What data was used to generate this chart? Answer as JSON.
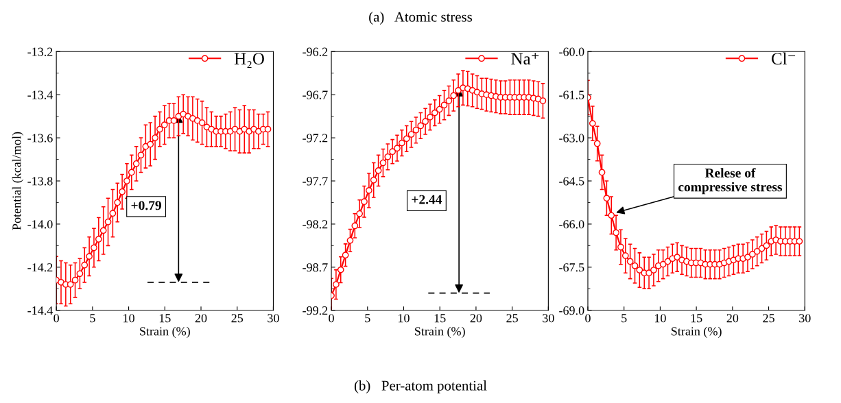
{
  "chart_data": [
    {
      "type": "line",
      "xlabel": "Strain (%)",
      "ylabel": "Potential (kcal/mol)",
      "xlim": [
        0,
        30
      ],
      "xticks": [
        0,
        5,
        10,
        15,
        20,
        25,
        30
      ],
      "ylim": [
        -14.4,
        -13.2
      ],
      "yticks": [
        -14.4,
        -14.2,
        {
          "value": -14,
          "label": "-14.0"
        },
        -13.8,
        -13.6,
        -13.4,
        -13.2
      ],
      "legend": "top right",
      "marker": "circle",
      "grid": false,
      "x": [
        0,
        0.65,
        1.3,
        1.95,
        2.6,
        3.25,
        3.9,
        4.55,
        5.2,
        5.85,
        6.5,
        7.15,
        7.8,
        8.45,
        9.1,
        9.75,
        10.4,
        11.05,
        11.7,
        12.35,
        13.0,
        13.65,
        14.3,
        14.95,
        15.6,
        16.25,
        16.9,
        17.55,
        18.2,
        18.85,
        19.5,
        20.15,
        20.8,
        21.45,
        22.1,
        22.75,
        23.4,
        24.05,
        24.7,
        25.35,
        26.0,
        26.65,
        27.3,
        27.95,
        28.6,
        29.25
      ],
      "series": [
        {
          "name": "H₂O",
          "color": "#ff0000",
          "values": [
            -14.26,
            -14.27,
            -14.28,
            -14.28,
            -14.26,
            -14.23,
            -14.19,
            -14.15,
            -14.11,
            -14.07,
            -14.03,
            -13.99,
            -13.95,
            -13.9,
            -13.85,
            -13.8,
            -13.76,
            -13.72,
            -13.68,
            -13.64,
            -13.63,
            -13.6,
            -13.56,
            -13.54,
            -13.52,
            -13.52,
            -13.5,
            -13.49,
            -13.5,
            -13.51,
            -13.52,
            -13.53,
            -13.55,
            -13.56,
            -13.57,
            -13.57,
            -13.57,
            -13.57,
            -13.56,
            -13.57,
            -13.56,
            -13.57,
            -13.56,
            -13.57,
            -13.56,
            -13.56
          ],
          "errors": [
            0.11,
            0.1,
            0.1,
            0.09,
            0.08,
            0.07,
            0.08,
            0.09,
            0.09,
            0.1,
            0.11,
            0.11,
            0.11,
            0.09,
            0.08,
            0.08,
            0.08,
            0.08,
            0.08,
            0.1,
            0.1,
            0.1,
            0.08,
            0.09,
            0.08,
            0.08,
            0.09,
            0.09,
            0.09,
            0.1,
            0.1,
            0.1,
            0.09,
            0.08,
            0.07,
            0.07,
            0.08,
            0.09,
            0.1,
            0.1,
            0.11,
            0.1,
            0.09,
            0.08,
            0.07,
            0.08
          ]
        },
        {
          "type": "line",
          "color": "#000000",
          "line_style": "dashed",
          "marker": "none",
          "x": [
            12.6,
            21.2
          ],
          "values": [
            -14.27,
            -14.27
          ]
        }
      ],
      "annotations": [
        "+0.79"
      ]
    },
    {
      "type": "line",
      "xlabel": "Strain (%)",
      "xlim": [
        0,
        30
      ],
      "xticks": [
        0,
        5,
        10,
        15,
        20,
        25,
        30
      ],
      "ylim": [
        -99.2,
        -96.2
      ],
      "yticks": [
        -99.2,
        -98.7,
        -98.2,
        -97.7,
        -97.2,
        -96.7,
        -96.2
      ],
      "legend": "top right",
      "marker": "circle",
      "grid": false,
      "x": [
        0,
        0.65,
        1.3,
        1.95,
        2.6,
        3.25,
        3.9,
        4.55,
        5.2,
        5.85,
        6.5,
        7.15,
        7.8,
        8.45,
        9.1,
        9.75,
        10.4,
        11.05,
        11.7,
        12.35,
        13.0,
        13.65,
        14.3,
        14.95,
        15.6,
        16.25,
        16.9,
        17.55,
        18.2,
        18.85,
        19.5,
        20.15,
        20.8,
        21.45,
        22.1,
        22.75,
        23.4,
        24.05,
        24.7,
        25.35,
        26.0,
        26.65,
        27.3,
        27.95,
        28.6,
        29.25
      ],
      "series": [
        {
          "name": "Na⁺",
          "color": "#ff0000",
          "values": [
            -99.03,
            -98.9,
            -98.73,
            -98.56,
            -98.39,
            -98.22,
            -98.08,
            -97.94,
            -97.81,
            -97.69,
            -97.58,
            -97.49,
            -97.42,
            -97.36,
            -97.32,
            -97.26,
            -97.21,
            -97.16,
            -97.11,
            -97.06,
            -97.01,
            -96.96,
            -96.91,
            -96.87,
            -96.82,
            -96.77,
            -96.71,
            -96.65,
            -96.62,
            -96.63,
            -96.65,
            -96.67,
            -96.69,
            -96.7,
            -96.71,
            -96.72,
            -96.73,
            -96.73,
            -96.73,
            -96.73,
            -96.73,
            -96.73,
            -96.73,
            -96.74,
            -96.75,
            -96.77
          ],
          "errors": [
            0.2,
            0.17,
            0.15,
            0.13,
            0.13,
            0.14,
            0.16,
            0.18,
            0.2,
            0.2,
            0.18,
            0.16,
            0.15,
            0.14,
            0.15,
            0.15,
            0.15,
            0.15,
            0.15,
            0.15,
            0.15,
            0.15,
            0.15,
            0.16,
            0.17,
            0.17,
            0.18,
            0.19,
            0.2,
            0.2,
            0.19,
            0.19,
            0.18,
            0.19,
            0.19,
            0.19,
            0.19,
            0.19,
            0.2,
            0.2,
            0.2,
            0.2,
            0.2,
            0.2,
            0.2,
            0.2
          ]
        },
        {
          "type": "line",
          "color": "#000000",
          "line_style": "dashed",
          "marker": "none",
          "x": [
            13.4,
            21.9
          ],
          "values": [
            -99.0,
            -99.0
          ]
        }
      ],
      "annotations": [
        "+2.44",
        "(a)   Atomic stress",
        "(b)   Per-atom potential"
      ]
    },
    {
      "type": "line",
      "xlabel": "Strain (%)",
      "xlim": [
        0,
        30
      ],
      "xticks": [
        0,
        5,
        10,
        15,
        20,
        25,
        30
      ],
      "ylim": [
        -69.0,
        -60.0
      ],
      "yticks": [
        {
          "value": -69,
          "label": "-69.0"
        },
        -67.5,
        {
          "value": -66,
          "label": "-66.0"
        },
        -64.5,
        {
          "value": -63,
          "label": "-63.0"
        },
        -61.5,
        {
          "value": -60,
          "label": "-60.0"
        }
      ],
      "legend": "top right",
      "marker": "circle",
      "grid": false,
      "x": [
        0,
        0.65,
        1.3,
        1.95,
        2.6,
        3.25,
        3.9,
        4.55,
        5.2,
        5.85,
        6.5,
        7.15,
        7.8,
        8.45,
        9.1,
        9.75,
        10.4,
        11.05,
        11.7,
        12.35,
        13.0,
        13.65,
        14.3,
        14.95,
        15.6,
        16.25,
        16.9,
        17.55,
        18.2,
        18.85,
        19.5,
        20.15,
        20.8,
        21.45,
        22.1,
        22.75,
        23.4,
        24.05,
        24.7,
        25.35,
        26.0,
        26.65,
        27.3,
        27.95,
        28.6,
        29.25
      ],
      "series": [
        {
          "name": "Cl⁻",
          "color": "#ff0000",
          "values": [
            -61.6,
            -62.5,
            -63.2,
            -64.2,
            -65.1,
            -65.7,
            -66.3,
            -66.8,
            -67.1,
            -67.3,
            -67.45,
            -67.6,
            -67.7,
            -67.7,
            -67.6,
            -67.45,
            -67.4,
            -67.3,
            -67.2,
            -67.15,
            -67.25,
            -67.3,
            -67.35,
            -67.35,
            -67.35,
            -67.4,
            -67.4,
            -67.4,
            -67.4,
            -67.35,
            -67.3,
            -67.25,
            -67.2,
            -67.2,
            -67.15,
            -67.05,
            -66.95,
            -66.85,
            -66.75,
            -66.6,
            -66.55,
            -66.6,
            -66.6,
            -66.6,
            -66.6,
            -66.6
          ],
          "errors": [
            0.6,
            0.6,
            0.6,
            0.6,
            0.6,
            0.65,
            0.6,
            0.6,
            0.6,
            0.6,
            0.6,
            0.6,
            0.55,
            0.55,
            0.55,
            0.55,
            0.5,
            0.5,
            0.5,
            0.5,
            0.5,
            0.5,
            0.5,
            0.5,
            0.5,
            0.5,
            0.5,
            0.5,
            0.5,
            0.5,
            0.5,
            0.5,
            0.5,
            0.5,
            0.5,
            0.5,
            0.5,
            0.5,
            0.5,
            0.5,
            0.5,
            0.5,
            0.5,
            0.5,
            0.5,
            0.5
          ]
        }
      ],
      "annotations": [
        {
          "text": "Relese of\ncompressive stress",
          "x": 3.9,
          "y": -65.6
        }
      ]
    }
  ]
}
